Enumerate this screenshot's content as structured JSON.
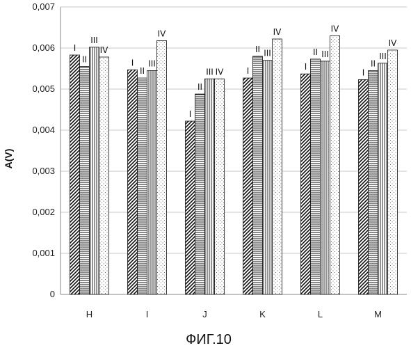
{
  "chart_data": {
    "type": "bar",
    "title": "",
    "xlabel": "",
    "ylabel": "A(V)",
    "ylim": [
      0,
      0.007
    ],
    "grid": "horizontal",
    "legend": "none",
    "y_ticks": [
      "0",
      "0,001",
      "0,002",
      "0,003",
      "0,004",
      "0,005",
      "0,006",
      "0,007"
    ],
    "categories": [
      "H",
      "I",
      "J",
      "K",
      "L",
      "M"
    ],
    "series": [
      {
        "label": "I",
        "pattern": "diagonal",
        "values": [
          0.00583,
          0.00547,
          0.00422,
          0.00527,
          0.00537,
          0.00523
        ]
      },
      {
        "label": "II",
        "pattern": "horizontal",
        "values": [
          0.00555,
          0.00527,
          0.00488,
          0.0058,
          0.00573,
          0.00545
        ]
      },
      {
        "label": "III",
        "pattern": "vertical",
        "values": [
          0.00602,
          0.00545,
          0.00525,
          0.0057,
          0.00568,
          0.00563
        ]
      },
      {
        "label": "IV",
        "pattern": "dots",
        "values": [
          0.00578,
          0.00618,
          0.00525,
          0.00622,
          0.0063,
          0.00595
        ]
      }
    ],
    "colors": {
      "grid": "#c8c8c8",
      "axis": "#888888",
      "bar_stroke": "#111111"
    }
  },
  "caption": "ФИГ.10"
}
